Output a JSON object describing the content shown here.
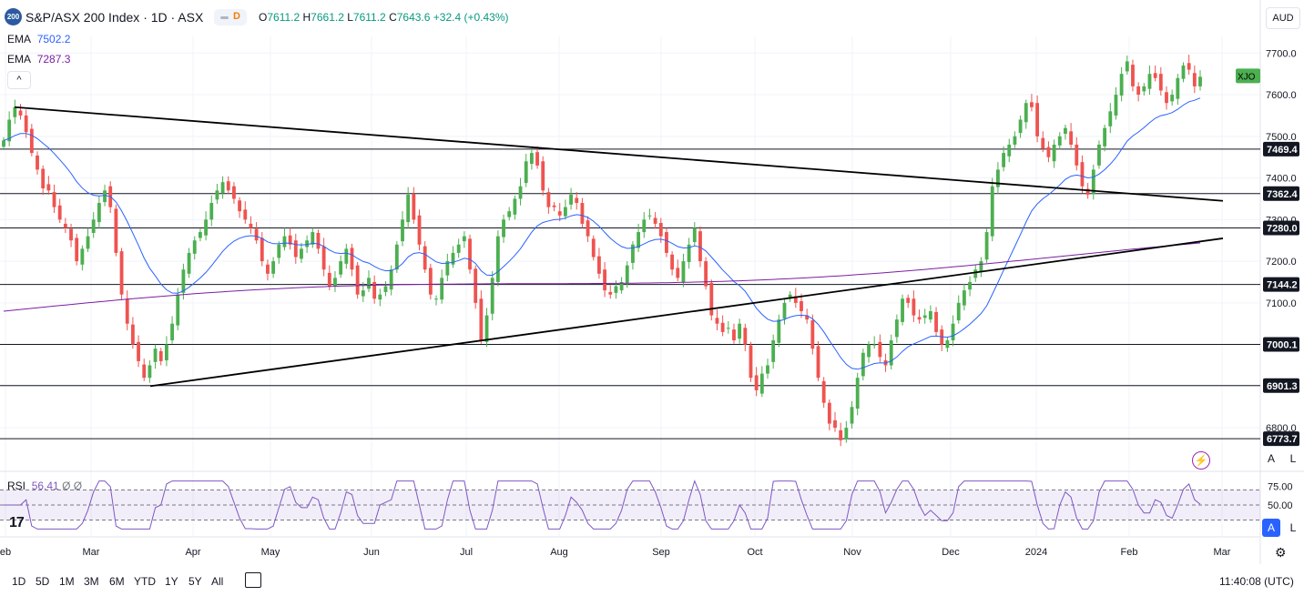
{
  "header": {
    "symbol_badge": "200",
    "title": "S&P/ASX 200 Index · 1D · ASX",
    "d_label": "D",
    "ohlc": {
      "o_label": "O",
      "o": "7611.2",
      "h_label": "H",
      "h": "7661.2",
      "l_label": "L",
      "l": "7611.2",
      "c_label": "C",
      "c": "7643.6",
      "chg": "+32.4 (+0.43%)"
    },
    "ema1": {
      "label": "EMA",
      "value": "7502.2",
      "color": "#2962ff"
    },
    "ema2": {
      "label": "EMA",
      "value": "7287.3",
      "color": "#7b1fa2"
    },
    "collapse_icon": "chevron-up-icon"
  },
  "currency_button": "AUD",
  "symbol_tag": "XJO",
  "auto_buttons": {
    "a": "A",
    "l": "L"
  },
  "rsi": {
    "label": "RSI",
    "value": "56.41",
    "extra": "Ø Ø",
    "levels": [
      70,
      50,
      30
    ],
    "color": "#7e57c2",
    "axis_labels": [
      "75.00",
      "50.00"
    ]
  },
  "footer": {
    "ranges": [
      "1D",
      "5D",
      "1M",
      "3M",
      "6M",
      "YTD",
      "1Y",
      "5Y",
      "All"
    ],
    "time": "11:40:08 (UTC)"
  },
  "chart_data": {
    "type": "candlestick",
    "y_axis_labels": [
      "7700.0",
      "7600.0",
      "7500.0",
      "7400.0",
      "7300.0",
      "7200.0",
      "7100.0",
      "7000.0",
      "6900.0",
      "6800.0"
    ],
    "ylim": [
      6750,
      7740
    ],
    "x_axis_labels": [
      "eb",
      "Mar",
      "Apr",
      "May",
      "Jun",
      "Jul",
      "Aug",
      "Sep",
      "Oct",
      "Nov",
      "Dec",
      "2024",
      "Feb",
      "Mar"
    ],
    "support_resistance_levels": [
      {
        "label": "7469.4",
        "value": 7469.4
      },
      {
        "label": "7362.4",
        "value": 7362.4
      },
      {
        "label": "7280.0",
        "value": 7280.0
      },
      {
        "label": "7144.2",
        "value": 7144.2
      },
      {
        "label": "7000.1",
        "value": 7000.1
      },
      {
        "label": "6901.3",
        "value": 6901.3
      },
      {
        "label": "6773.7",
        "value": 6773.7
      }
    ],
    "last_price_tag": "XJO",
    "colors": {
      "up": "#4caf50",
      "down": "#ef5350"
    },
    "closes": [
      7490,
      7540,
      7570,
      7550,
      7510,
      7460,
      7420,
      7375,
      7370,
      7330,
      7300,
      7280,
      7250,
      7200,
      7230,
      7260,
      7300,
      7340,
      7370,
      7330,
      7220,
      7120,
      7050,
      7000,
      6960,
      6920,
      6950,
      6990,
      6960,
      7000,
      7050,
      7120,
      7180,
      7220,
      7250,
      7270,
      7300,
      7340,
      7370,
      7390,
      7370,
      7350,
      7320,
      7300,
      7280,
      7250,
      7200,
      7170,
      7200,
      7240,
      7260,
      7240,
      7210,
      7230,
      7250,
      7270,
      7230,
      7180,
      7140,
      7160,
      7200,
      7230,
      7180,
      7120,
      7130,
      7160,
      7110,
      7120,
      7140,
      7180,
      7240,
      7300,
      7360,
      7300,
      7240,
      7180,
      7120,
      7110,
      7160,
      7200,
      7220,
      7240,
      7260,
      7180,
      7100,
      7010,
      7070,
      7160,
      7260,
      7300,
      7320,
      7350,
      7380,
      7440,
      7460,
      7430,
      7370,
      7330,
      7330,
      7310,
      7330,
      7360,
      7340,
      7290,
      7260,
      7210,
      7170,
      7130,
      7120,
      7140,
      7150,
      7190,
      7240,
      7270,
      7300,
      7310,
      7290,
      7260,
      7220,
      7180,
      7160,
      7200,
      7240,
      7280,
      7200,
      7140,
      7070,
      7050,
      7030,
      7040,
      7010,
      7050,
      7000,
      6920,
      6890,
      6930,
      6950,
      7010,
      7060,
      7100,
      7120,
      7100,
      7080,
      7060,
      6990,
      6920,
      6860,
      6810,
      6800,
      6770,
      6800,
      6850,
      6920,
      6980,
      7000,
      7000,
      6970,
      6950,
      7010,
      7060,
      7110,
      7100,
      7070,
      7060,
      7070,
      7080,
      7030,
      7000,
      7010,
      7050,
      7100,
      7130,
      7150,
      7180,
      7200,
      7270,
      7380,
      7420,
      7460,
      7480,
      7500,
      7540,
      7580,
      7570,
      7500,
      7470,
      7450,
      7480,
      7500,
      7520,
      7480,
      7430,
      7380,
      7360,
      7420,
      7480,
      7520,
      7560,
      7600,
      7650,
      7680,
      7620,
      7600,
      7620,
      7650,
      7640,
      7610,
      7580,
      7600,
      7640,
      7670,
      7660,
      7620,
      7643
    ]
  }
}
